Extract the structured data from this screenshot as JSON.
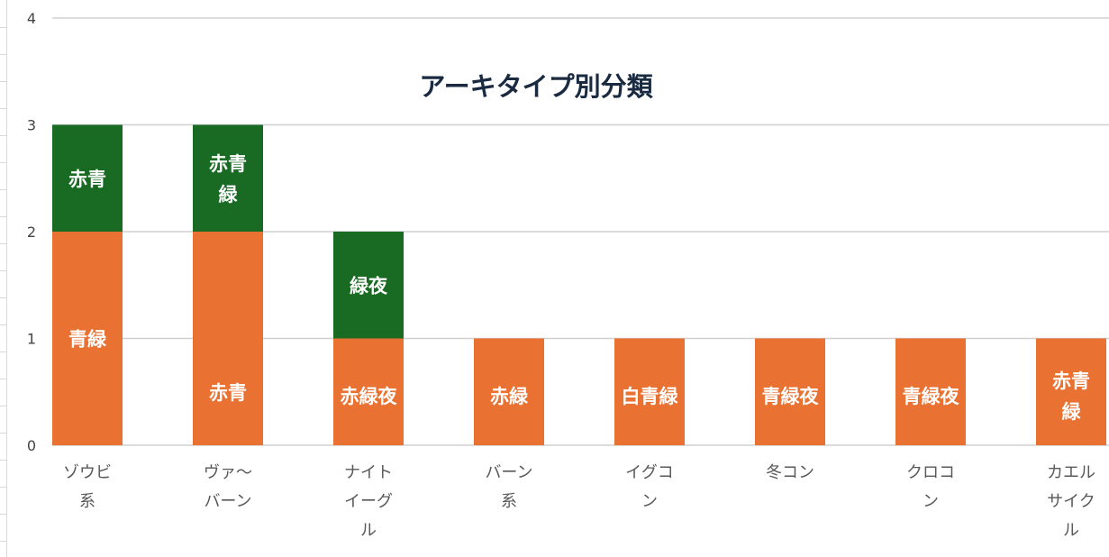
{
  "chart_data": {
    "type": "bar",
    "stacked": true,
    "title": "アーキタイプ別分類",
    "xlabel": "",
    "ylabel": "",
    "ylim": [
      0,
      4
    ],
    "yticks": [
      "0",
      "1",
      "2",
      "3",
      "4"
    ],
    "grid": true,
    "legend": "none",
    "colors": {
      "bottom": "#e97132",
      "top": "#196b24"
    },
    "categories": [
      [
        "ゾウビ",
        "系"
      ],
      [
        "ヴァ～",
        "バーン"
      ],
      [
        "ナイト",
        "イーグ",
        "ル"
      ],
      [
        "バーン",
        "系"
      ],
      [
        "イグコ",
        "ン"
      ],
      [
        "冬コン"
      ],
      [
        "クロコ",
        "ン"
      ],
      [
        "カエル",
        "サイク",
        "ル"
      ]
    ],
    "series": [
      {
        "values": [
          2,
          2,
          1,
          1,
          1,
          1,
          1,
          1
        ],
        "labels": [
          [
            "青緑"
          ],
          [
            "赤青"
          ],
          [
            "赤緑夜"
          ],
          [
            "赤緑"
          ],
          [
            "白青緑"
          ],
          [
            "青緑夜"
          ],
          [
            "青緑夜"
          ],
          [
            "赤青",
            "緑"
          ]
        ]
      },
      {
        "values": [
          1,
          1,
          1,
          0,
          0,
          0,
          0,
          0
        ],
        "labels": [
          [
            "赤青"
          ],
          [
            "赤青",
            "緑"
          ],
          [
            "緑夜"
          ],
          [],
          [],
          [],
          [],
          []
        ]
      }
    ]
  }
}
